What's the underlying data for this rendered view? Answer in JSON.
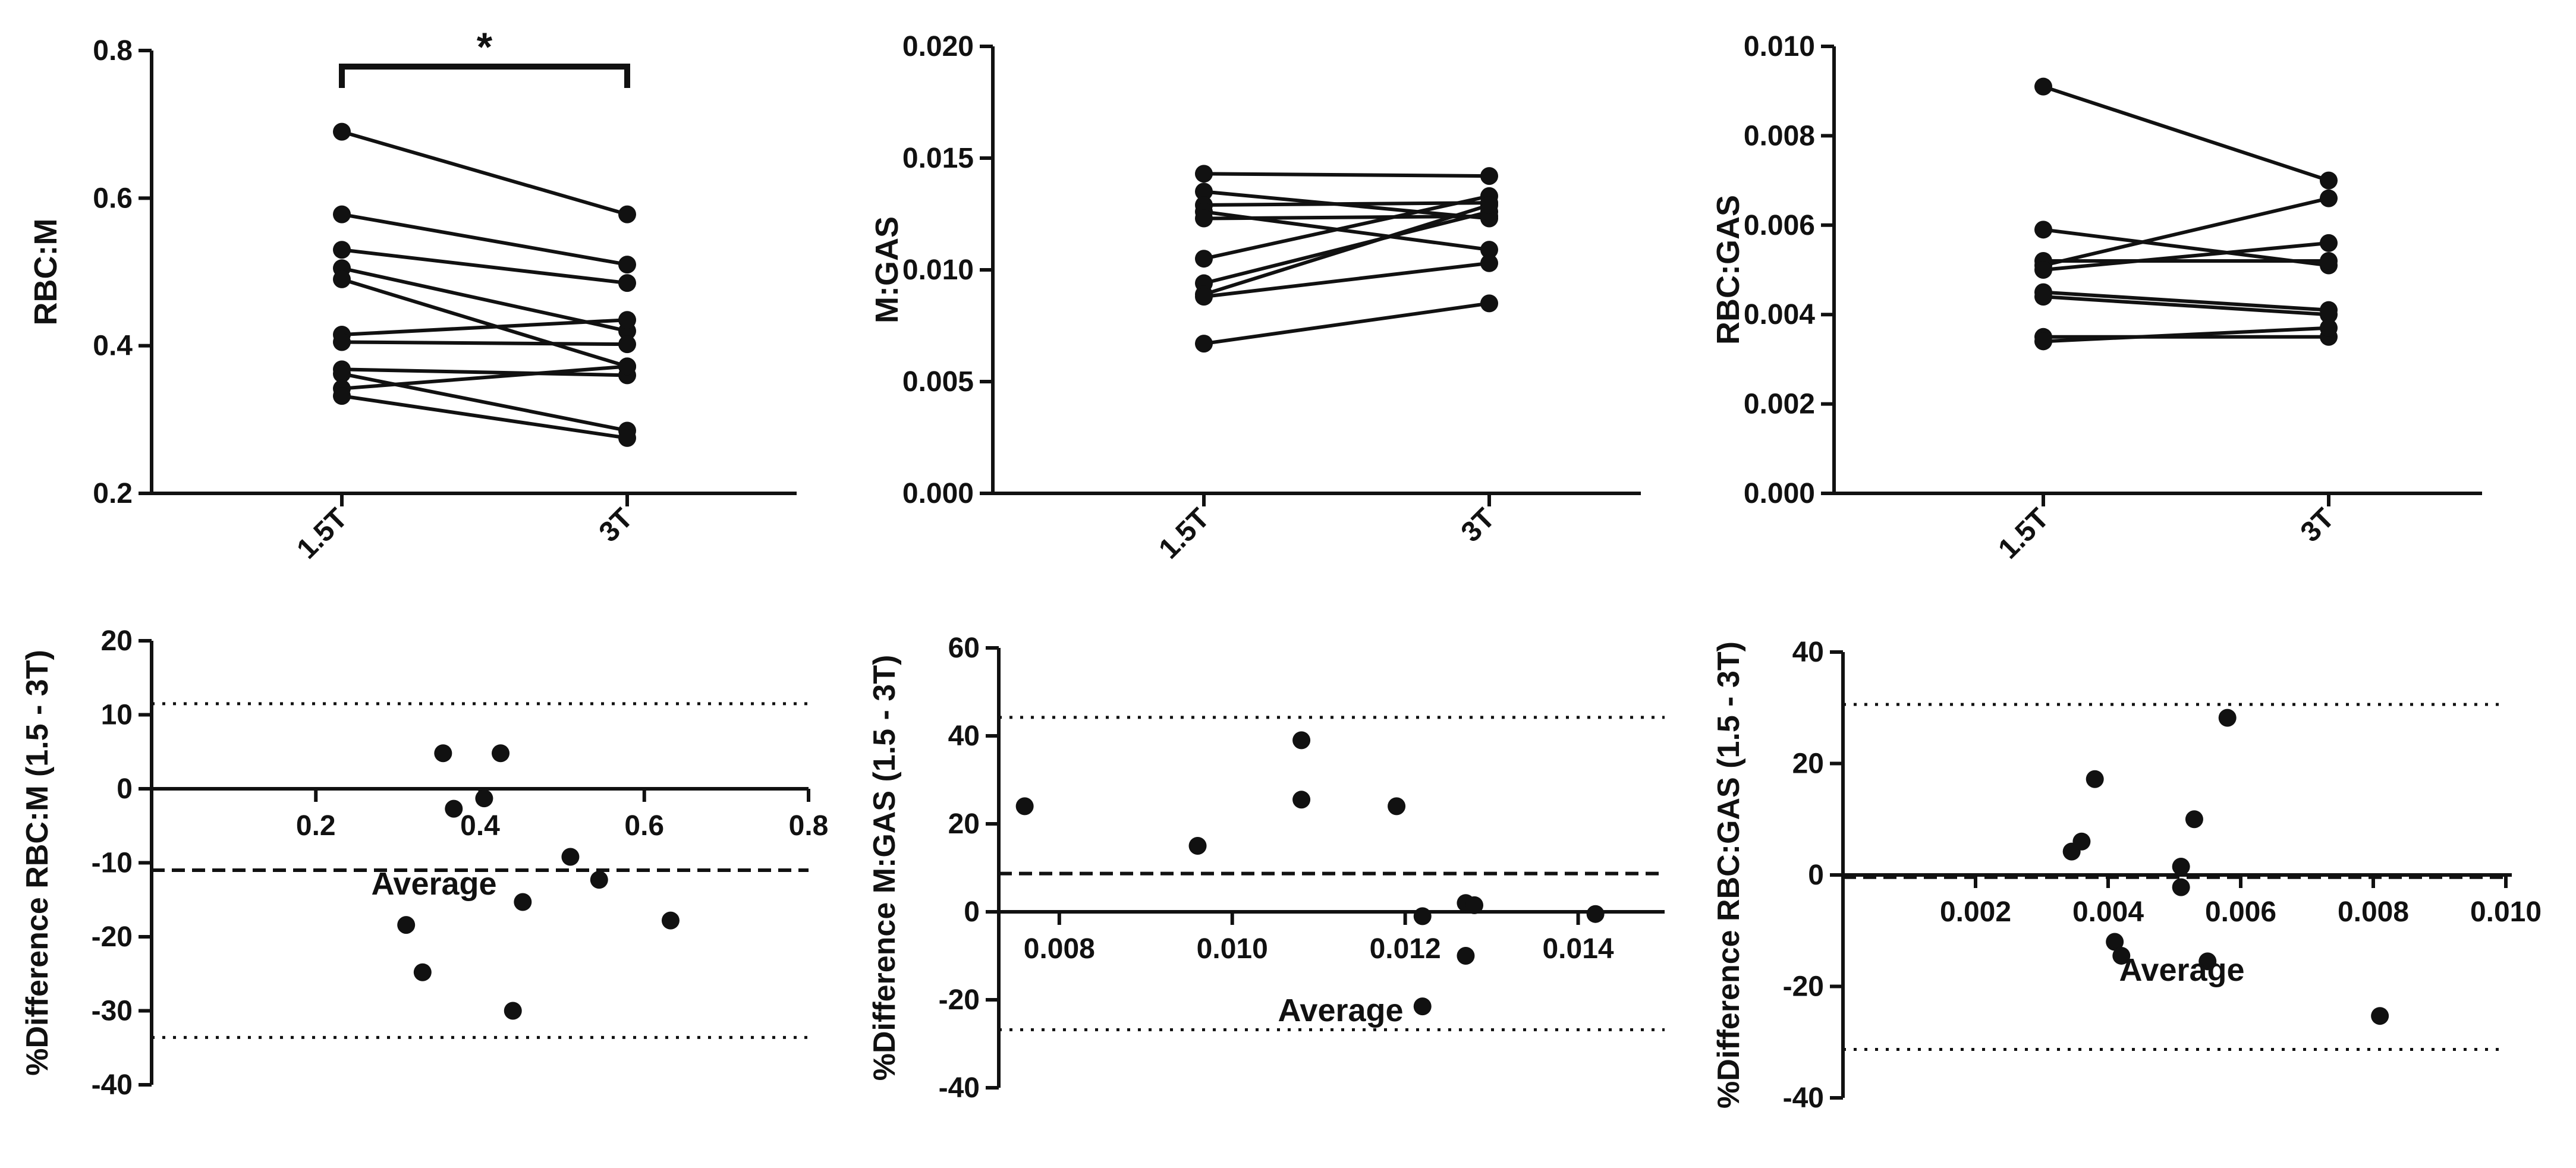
{
  "chart_data": [
    {
      "type": "paired_line",
      "ylabel": "RBC:M",
      "ylim": [
        0.2,
        0.8
      ],
      "yticks": [
        0.2,
        0.4,
        0.6,
        0.8
      ],
      "ytick_labels": [
        "0.2",
        "0.4",
        "0.6",
        "0.8"
      ],
      "categories": [
        "1.5T",
        "3T"
      ],
      "significance": "*",
      "pairs": [
        [
          0.69,
          0.578
        ],
        [
          0.578,
          0.51
        ],
        [
          0.53,
          0.485
        ],
        [
          0.505,
          0.42
        ],
        [
          0.49,
          0.372
        ],
        [
          0.415,
          0.435
        ],
        [
          0.405,
          0.402
        ],
        [
          0.368,
          0.36
        ],
        [
          0.362,
          0.285
        ],
        [
          0.342,
          0.372
        ],
        [
          0.332,
          0.275
        ]
      ]
    },
    {
      "type": "paired_line",
      "ylabel": "M:GAS",
      "ylim": [
        0,
        0.02
      ],
      "yticks": [
        0,
        0.005,
        0.01,
        0.015,
        0.02
      ],
      "ytick_labels": [
        "0.000",
        "0.005",
        "0.010",
        "0.015",
        "0.020"
      ],
      "categories": [
        "1.5T",
        "3T"
      ],
      "pairs": [
        [
          0.0143,
          0.0142
        ],
        [
          0.0135,
          0.0123
        ],
        [
          0.0129,
          0.013
        ],
        [
          0.0126,
          0.0109
        ],
        [
          0.0123,
          0.0124
        ],
        [
          0.0105,
          0.0133
        ],
        [
          0.0094,
          0.0126
        ],
        [
          0.0089,
          0.0129
        ],
        [
          0.0088,
          0.0103
        ],
        [
          0.0067,
          0.0085
        ]
      ]
    },
    {
      "type": "paired_line",
      "ylabel": "RBC:GAS",
      "ylim": [
        0,
        0.01
      ],
      "yticks": [
        0,
        0.002,
        0.004,
        0.006,
        0.008,
        0.01
      ],
      "ytick_labels": [
        "0.000",
        "0.002",
        "0.004",
        "0.006",
        "0.008",
        "0.010"
      ],
      "categories": [
        "1.5T",
        "3T"
      ],
      "pairs": [
        [
          0.0091,
          0.007
        ],
        [
          0.0059,
          0.0051
        ],
        [
          0.0052,
          0.0052
        ],
        [
          0.0051,
          0.0066
        ],
        [
          0.005,
          0.0056
        ],
        [
          0.0045,
          0.0041
        ],
        [
          0.0044,
          0.004
        ],
        [
          0.0035,
          0.0035
        ],
        [
          0.0034,
          0.0037
        ]
      ]
    },
    {
      "type": "bland_altman",
      "ylabel": "%Difference RBC:M (1.5 - 3T)",
      "xlabel": "Average",
      "xlim": [
        0,
        0.8
      ],
      "ylim": [
        -40,
        20
      ],
      "xticks": [
        0.2,
        0.4,
        0.6,
        0.8
      ],
      "xtick_labels": [
        "0.2",
        "0.4",
        "0.6",
        "0.8"
      ],
      "yticks": [
        -40,
        -30,
        -20,
        -10,
        0,
        10,
        20
      ],
      "ytick_labels": [
        "-40",
        "-30",
        "-20",
        "-10",
        "0",
        "10",
        "20"
      ],
      "mean_bias": -11,
      "loa_upper": 11.5,
      "loa_lower": -33.6,
      "points": [
        [
          0.355,
          4.8
        ],
        [
          0.425,
          4.8
        ],
        [
          0.368,
          -2.7
        ],
        [
          0.405,
          -1.3
        ],
        [
          0.51,
          -9.2
        ],
        [
          0.545,
          -12.3
        ],
        [
          0.452,
          -15.3
        ],
        [
          0.31,
          -18.4
        ],
        [
          0.632,
          -17.8
        ],
        [
          0.33,
          -24.8
        ],
        [
          0.44,
          -30.0
        ]
      ]
    },
    {
      "type": "bland_altman",
      "ylabel": "%Difference M:GAS (1.5 - 3T)",
      "xlabel": "Average",
      "xlim": [
        0.0073,
        0.015
      ],
      "ylim": [
        -40,
        60
      ],
      "xticks": [
        0.008,
        0.01,
        0.012,
        0.014
      ],
      "xtick_labels": [
        "0.008",
        "0.010",
        "0.012",
        "0.014"
      ],
      "yticks": [
        -40,
        -20,
        0,
        20,
        40,
        60
      ],
      "ytick_labels": [
        "-40",
        "-20",
        "0",
        "20",
        "40",
        "60"
      ],
      "mean_bias": 8.7,
      "loa_upper": 44.2,
      "loa_lower": -26.8,
      "points": [
        [
          0.0076,
          24
        ],
        [
          0.0096,
          15
        ],
        [
          0.0108,
          39
        ],
        [
          0.0108,
          25.5
        ],
        [
          0.0119,
          24
        ],
        [
          0.0122,
          -1
        ],
        [
          0.0127,
          2
        ],
        [
          0.0128,
          1.5
        ],
        [
          0.0127,
          -10
        ],
        [
          0.0122,
          -21.5
        ],
        [
          0.0142,
          -0.5
        ]
      ]
    },
    {
      "type": "bland_altman",
      "ylabel": "%Difference RBC:GAS (1.5 - 3T)",
      "xlabel": "Average",
      "xlim": [
        0,
        0.01
      ],
      "ylim": [
        -40,
        40
      ],
      "xticks": [
        0.002,
        0.004,
        0.006,
        0.008,
        0.01
      ],
      "xtick_labels": [
        "0.002",
        "0.004",
        "0.006",
        "0.008",
        "0.010"
      ],
      "yticks": [
        -40,
        -20,
        0,
        20,
        40
      ],
      "ytick_labels": [
        "-40",
        "-20",
        "0",
        "20",
        "40"
      ],
      "mean_bias": -0.4,
      "loa_upper": 30.6,
      "loa_lower": -31.3,
      "points": [
        [
          0.00345,
          4.2
        ],
        [
          0.0036,
          6
        ],
        [
          0.0038,
          17.2
        ],
        [
          0.0053,
          10
        ],
        [
          0.0058,
          28.2
        ],
        [
          0.0051,
          1.5
        ],
        [
          0.0051,
          -2.2
        ],
        [
          0.0041,
          -12
        ],
        [
          0.0042,
          -14.5
        ],
        [
          0.0055,
          -15.5
        ],
        [
          0.0081,
          -25.3
        ]
      ]
    }
  ]
}
